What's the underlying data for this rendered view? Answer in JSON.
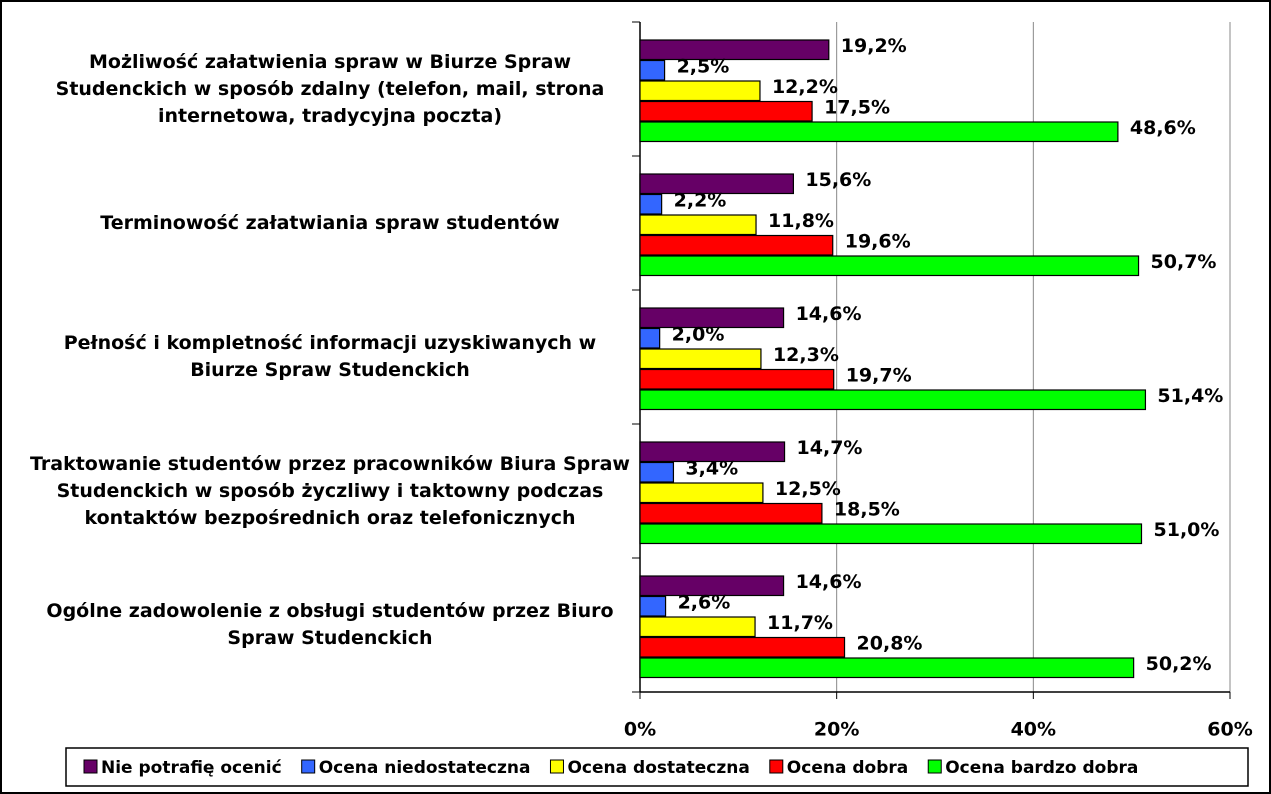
{
  "chart_data": {
    "type": "barh",
    "categories": [
      "Możliwość załatwienia spraw w Biurze Spraw Studenckich w sposób zdalny (telefon, mail, strona internetowa, tradycyjna poczta)",
      "Terminowość załatwiania spraw studentów",
      "Pełność i kompletność informacji uzyskiwanych w Biurze Spraw Studenckich",
      "Traktowanie studentów przez pracowników Biura Spraw Studenckich w sposób życzliwy i taktowny podczas kontaktów bezpośrednich oraz telefonicznych",
      "Ogólne zadowolenie z obsługi studentów przez Biuro Spraw Studenckich"
    ],
    "series": [
      {
        "name": "Nie potrafię ocenić",
        "color": "#660066",
        "values": [
          19.2,
          15.6,
          14.6,
          14.7,
          14.6
        ],
        "value_labels": [
          "19,2%",
          "15,6%",
          "14,6%",
          "14,7%",
          "14,6%"
        ]
      },
      {
        "name": "Ocena niedostateczna",
        "color": "#3366ff",
        "values": [
          2.5,
          2.2,
          2.0,
          3.4,
          2.6
        ],
        "value_labels": [
          "2,5%",
          "2,2%",
          "2,0%",
          "3,4%",
          "2,6%"
        ]
      },
      {
        "name": "Ocena dostateczna",
        "color": "#ffff00",
        "values": [
          12.2,
          11.8,
          12.3,
          12.5,
          11.7
        ],
        "value_labels": [
          "12,2%",
          "11,8%",
          "12,3%",
          "12,5%",
          "11,7%"
        ]
      },
      {
        "name": "Ocena dobra",
        "color": "#ff0000",
        "values": [
          17.5,
          19.6,
          19.7,
          18.5,
          20.8
        ],
        "value_labels": [
          "17,5%",
          "19,6%",
          "19,7%",
          "18,5%",
          "20,8%"
        ]
      },
      {
        "name": "Ocena bardzo dobra",
        "color": "#00ff00",
        "values": [
          48.6,
          50.7,
          51.4,
          51.0,
          50.2
        ],
        "value_labels": [
          "48,6%",
          "50,7%",
          "51,4%",
          "51,0%",
          "50,2%"
        ]
      }
    ],
    "xlim": [
      0,
      60
    ],
    "xticks": [
      {
        "value": 0,
        "label": "0%"
      },
      {
        "value": 20,
        "label": "20%"
      },
      {
        "value": 40,
        "label": "40%"
      },
      {
        "value": 60,
        "label": "60%"
      }
    ],
    "grid": true,
    "legend": "bottom"
  }
}
